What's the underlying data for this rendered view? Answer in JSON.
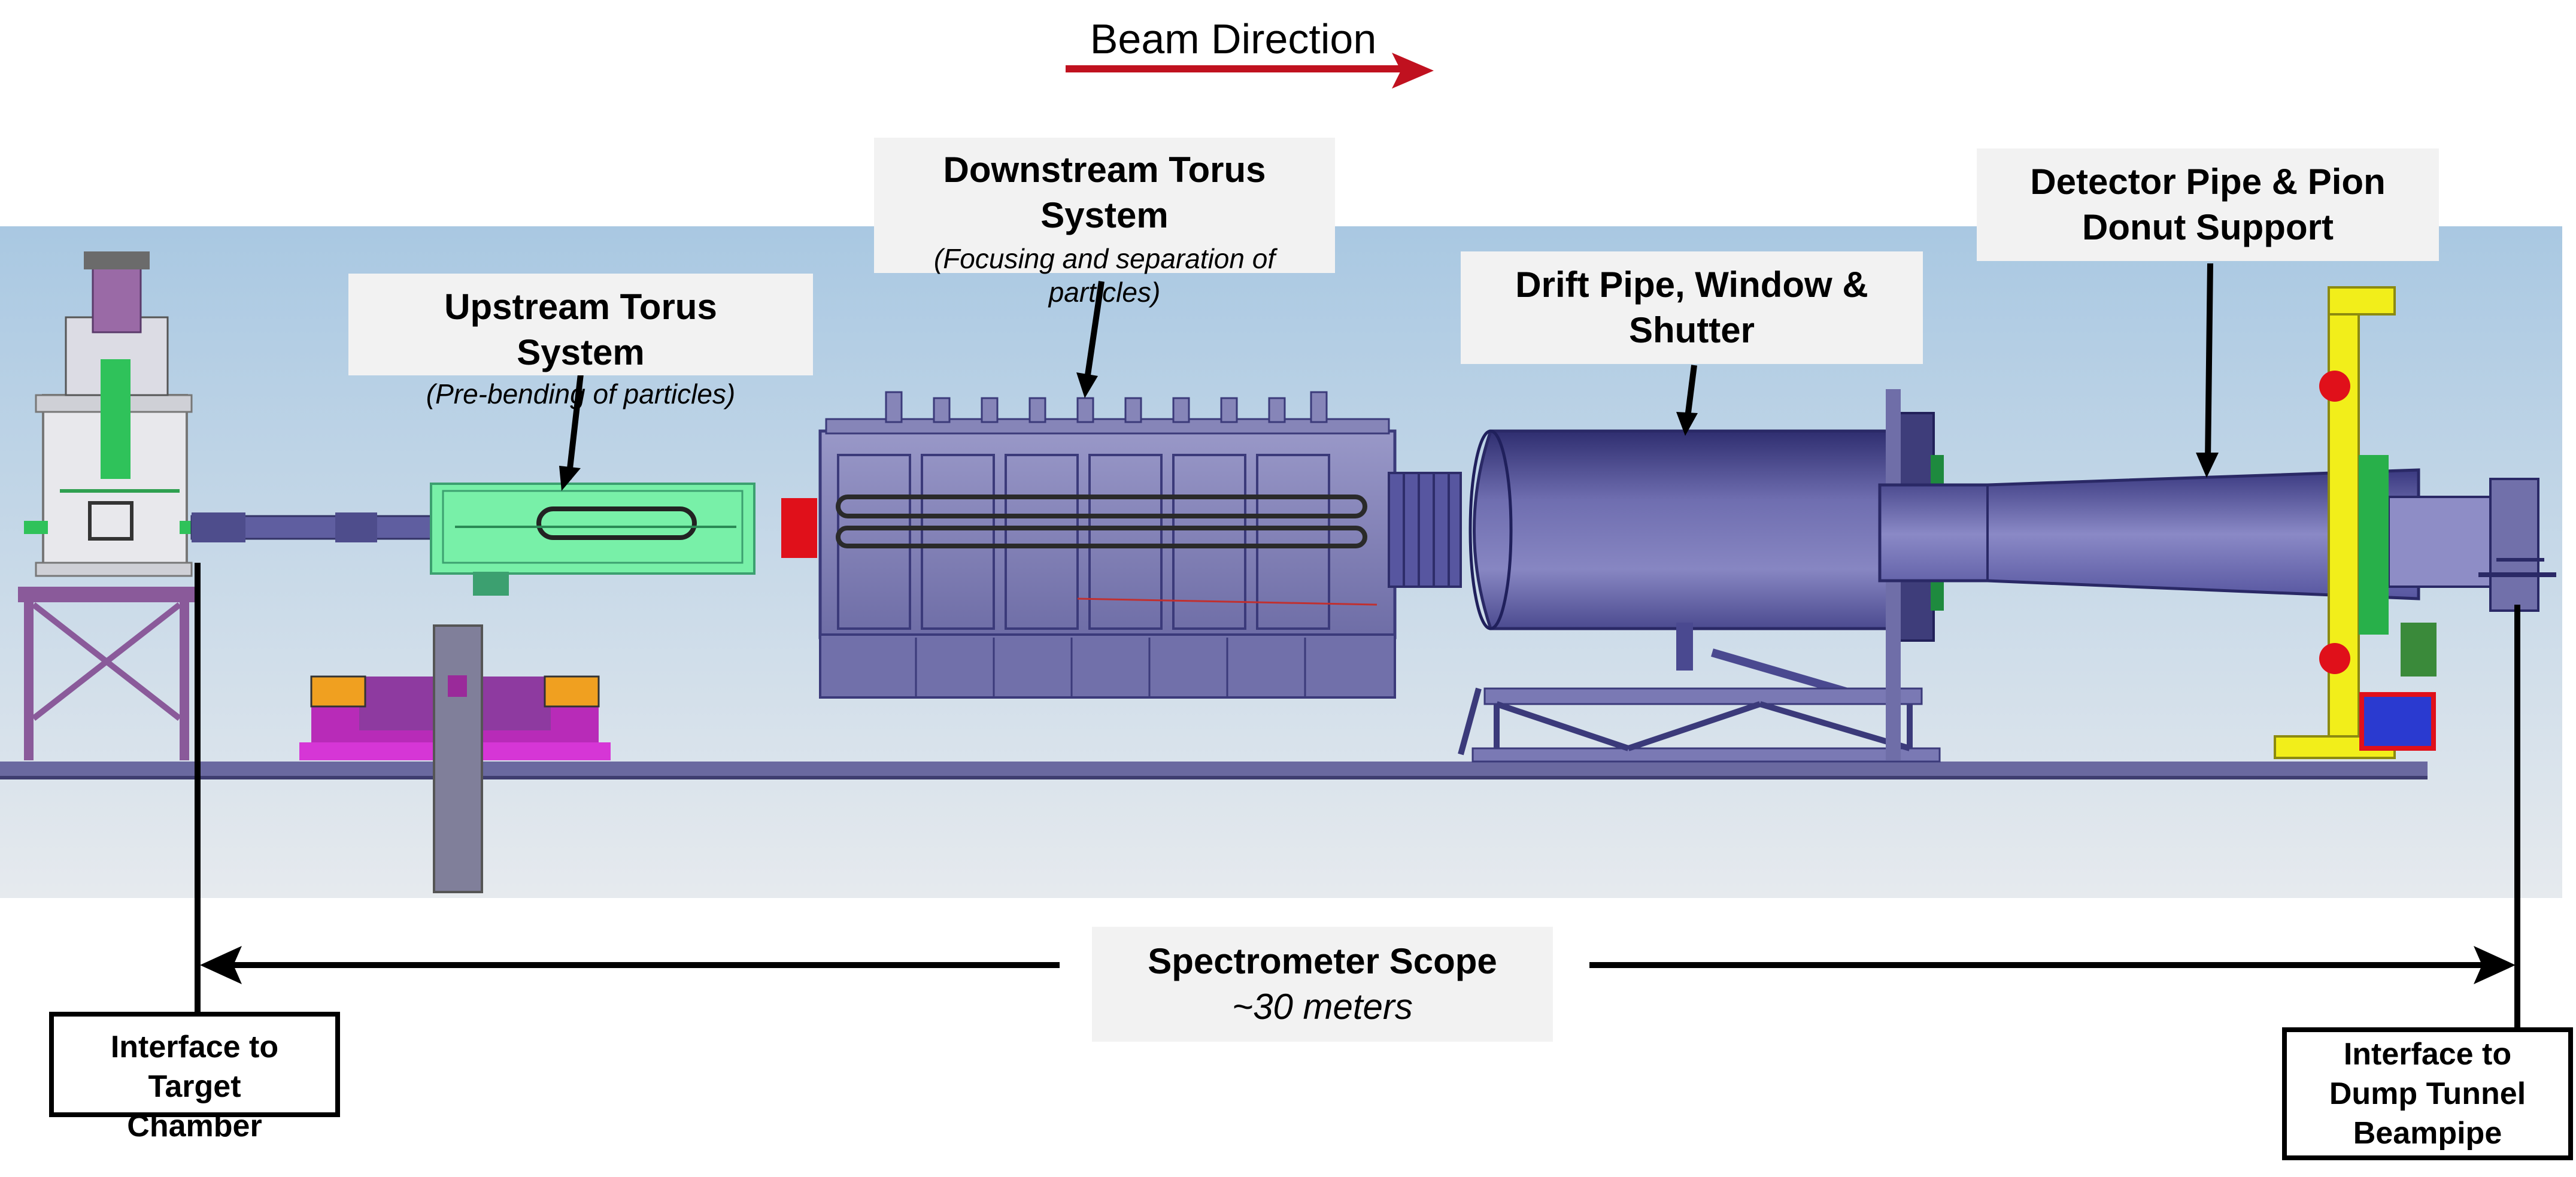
{
  "beam_direction": {
    "label": "Beam Direction",
    "arrow_color": "#c0111f"
  },
  "labels": {
    "upstream_torus": {
      "title_line1": "Upstream Torus",
      "title_line2": "System",
      "subtitle": "(Pre-bending of particles)"
    },
    "downstream_torus": {
      "title_line1": "Downstream Torus",
      "title_line2": "System",
      "subtitle_line1": "(Focusing and separation of",
      "subtitle_line2": "particles)"
    },
    "drift_pipe": {
      "title_line1": "Drift Pipe, Window &",
      "title_line2": "Shutter"
    },
    "detector_pipe": {
      "title_line1": "Detector Pipe & Pion",
      "title_line2": "Donut Support"
    },
    "spectrometer_scope": {
      "title": "Spectrometer Scope",
      "subtitle": "~30 meters"
    },
    "interface_target": {
      "line1": "Interface to",
      "line2": "Target",
      "line3": "Chamber"
    },
    "interface_dump": {
      "line1": "Interface to",
      "line2": "Dump Tunnel",
      "line3": "Beampipe"
    }
  },
  "colors": {
    "sky_top": "#a9c8e2",
    "sky_bottom": "#e6eaee",
    "machine_purple": "#7170aa",
    "machine_dark": "#3b3a7a",
    "upstream_green": "#6ff0a0",
    "support_yellow": "#f2ee1a",
    "red_part": "#e0101a",
    "magenta_part": "#c030c0",
    "orange_part": "#f0a020"
  }
}
